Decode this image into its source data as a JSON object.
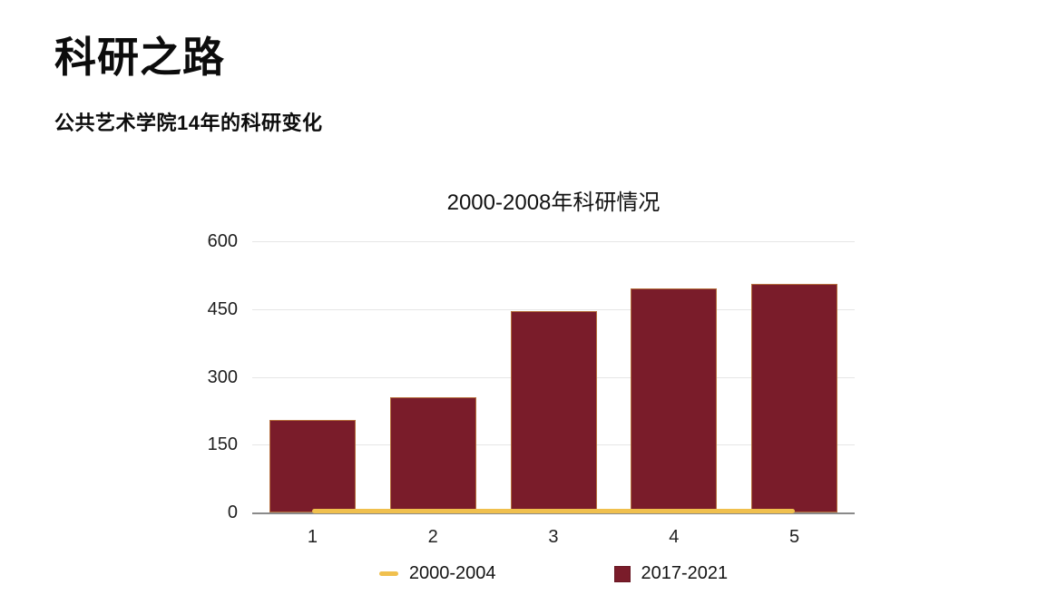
{
  "header": {
    "title": "科研之路",
    "subtitle": "公共艺术学院14年的科研变化"
  },
  "chart_data": {
    "type": "bar",
    "title": "2000-2008年科研情况",
    "categories": [
      "1",
      "2",
      "3",
      "4",
      "5"
    ],
    "series": [
      {
        "name": "2000-2004",
        "type": "line",
        "color": "#F0C04E",
        "values": [
          3,
          3,
          3,
          3,
          3
        ]
      },
      {
        "name": "2017-2021",
        "type": "bar",
        "color": "#7A1C2A",
        "values": [
          205,
          255,
          445,
          495,
          505
        ]
      }
    ],
    "xlabel": "",
    "ylabel": "",
    "ylim": [
      0,
      600
    ],
    "yticks": [
      0,
      150,
      300,
      450,
      600
    ],
    "grid": true,
    "legend_position": "bottom",
    "colors": {
      "grid": "#E6E6E6",
      "axis": "#8A8A8A",
      "text": "#1F1F1F",
      "background": "#FFFFFF"
    }
  }
}
